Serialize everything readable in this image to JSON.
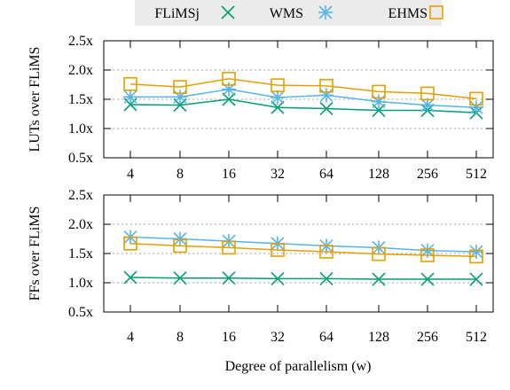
{
  "legend": [
    {
      "name": "FLiMSj",
      "color": "#009e73",
      "marker": "x"
    },
    {
      "name": "WMS",
      "color": "#56b4e9",
      "marker": "asterisk"
    },
    {
      "name": "EHMS",
      "color": "#e69f00",
      "marker": "square"
    }
  ],
  "xlabel": "Degree of parallelism (w)",
  "chart_data": [
    {
      "type": "line",
      "categories": [
        "4",
        "8",
        "16",
        "32",
        "64",
        "128",
        "256",
        "512"
      ],
      "ylabel": "LUTs over FLiMS",
      "ylim": [
        0.5,
        2.5
      ],
      "yticks": [
        "0.5x",
        "1.0x",
        "1.5x",
        "2.0x",
        "2.5x"
      ],
      "grid": "horizontal dotted",
      "series": [
        {
          "name": "FLiMSj",
          "values": [
            1.41,
            1.4,
            1.5,
            1.36,
            1.34,
            1.31,
            1.31,
            1.27
          ]
        },
        {
          "name": "WMS",
          "values": [
            1.54,
            1.54,
            1.67,
            1.53,
            1.57,
            1.46,
            1.4,
            1.36
          ]
        },
        {
          "name": "EHMS",
          "values": [
            1.76,
            1.71,
            1.85,
            1.74,
            1.73,
            1.63,
            1.6,
            1.51
          ]
        }
      ]
    },
    {
      "type": "line",
      "categories": [
        "4",
        "8",
        "16",
        "32",
        "64",
        "128",
        "256",
        "512"
      ],
      "ylabel": "FFs over FLiMS",
      "ylim": [
        0.5,
        2.5
      ],
      "yticks": [
        "0.5x",
        "1.0x",
        "1.5x",
        "2.0x",
        "2.5x"
      ],
      "grid": "horizontal dotted",
      "series": [
        {
          "name": "FLiMSj",
          "values": [
            1.09,
            1.08,
            1.08,
            1.07,
            1.07,
            1.06,
            1.06,
            1.06
          ]
        },
        {
          "name": "WMS",
          "values": [
            1.78,
            1.75,
            1.71,
            1.67,
            1.63,
            1.6,
            1.55,
            1.53
          ]
        },
        {
          "name": "EHMS",
          "values": [
            1.67,
            1.63,
            1.6,
            1.56,
            1.53,
            1.49,
            1.47,
            1.45
          ]
        }
      ]
    }
  ]
}
